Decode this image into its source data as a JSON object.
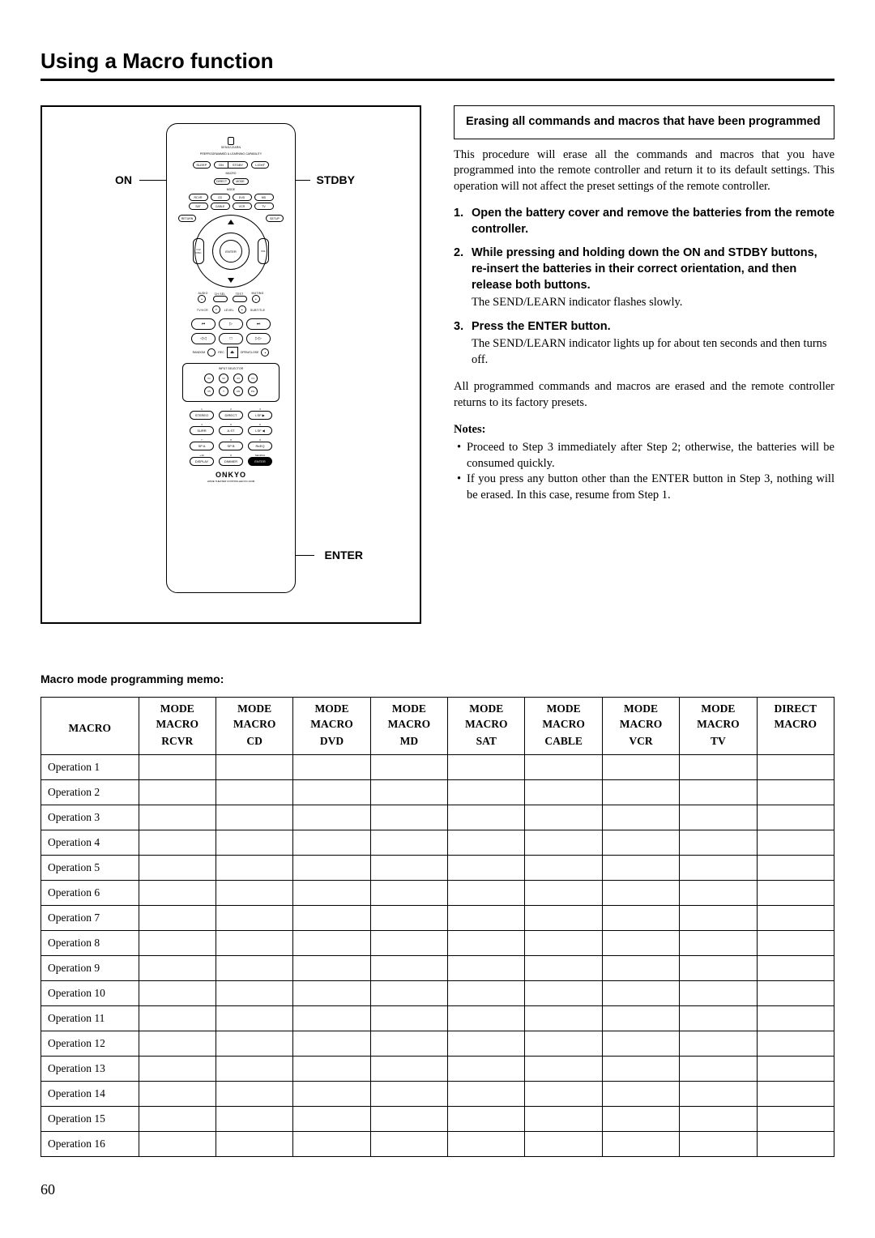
{
  "page": {
    "title": "Using a Macro function",
    "number": "60"
  },
  "remote": {
    "callouts": {
      "on": "ON",
      "stdby": "STDBY",
      "enter": "ENTER"
    },
    "sendlearn": "SEND/LEARN",
    "preprog": "PREPROGRAMMED & LEARNING CAPABILITY",
    "sleep": "SLEEP",
    "on": "ON",
    "stdby": "STDBY",
    "light": "LIGHT",
    "macro": "MACRO",
    "direct": "DIRECT",
    "mode_label": "MODE",
    "mode_btn": "MODE",
    "modes": [
      "RCVR",
      "CD",
      "DVD",
      "MD",
      "SAT",
      "CABLE",
      "VCR",
      "TV"
    ],
    "return": "RETURN",
    "setup": "SETUP",
    "ch_disc": "CH/\nDISC",
    "vol": "VOL",
    "enter": "ENTER",
    "audio": "AUDIO",
    "chsel": "CH SEL",
    "test": "TEST",
    "muting": "MUTING",
    "tvvcr": "TV/VCR",
    "angle": "ANGLE",
    "level": "LEVEL",
    "subtitle": "SUBTITLE",
    "random": "RANDOM",
    "rec": "REC",
    "openclose": "OPEN/CLOSE",
    "input_selector": "INPUT SELECTOR",
    "inputs1": [
      "V1",
      "V2",
      "V3",
      "V4"
    ],
    "inputs2": [
      "V5",
      "T",
      "CD",
      "PH"
    ],
    "num_labels": [
      "1",
      "2",
      "3",
      "4",
      "5",
      "6",
      "7",
      "8",
      "9",
      "+10",
      "0",
      "SEARCH"
    ],
    "sub_labels": [
      "STEREO",
      "DIRECT",
      "LSF ▶",
      "SURR",
      "A.ST",
      "LSF ◀",
      "SP A",
      "SP B",
      "ReEQ"
    ],
    "display": "DISPLAY",
    "dimmer": "DIMMER",
    "enter2": "ENTER",
    "brand": "ONKYO",
    "brand_sub": "HOME THEATER CONTROLLER\nRC-443M"
  },
  "erase": {
    "box_title": "Erasing all commands and macros that have been programmed",
    "intro": "This procedure will erase all the commands and macros that you have programmed into the remote controller and return it to its default settings. This operation will not affect the preset settings of the remote controller.",
    "steps": [
      {
        "n": "1.",
        "title": "Open the battery cover and remove the batteries from the remote controller.",
        "note": ""
      },
      {
        "n": "2.",
        "title": "While pressing and holding down the ON and STDBY buttons, re-insert the batteries in their correct orientation, and then release both buttons.",
        "note": "The SEND/LEARN indicator flashes slowly."
      },
      {
        "n": "3.",
        "title": "Press the ENTER button.",
        "note": "The SEND/LEARN indicator lights up for about ten seconds and then turns off."
      }
    ],
    "outro": "All programmed commands and macros are erased and the remote controller returns to its factory presets.",
    "notes_hdr": "Notes:",
    "notes": [
      "Proceed to Step 3 immediately after Step 2; otherwise, the batteries will be consumed quickly.",
      "If you press any button other than the ENTER button in Step 3, nothing will be erased. In this case, resume from Step 1."
    ]
  },
  "memo": {
    "title": "Macro mode programming memo:",
    "header": {
      "col1_r1": "MACRO",
      "mode": "MODE",
      "macro": "MACRO",
      "direct": "DIRECT",
      "cols": [
        "RCVR",
        "CD",
        "DVD",
        "MD",
        "SAT",
        "CABLE",
        "VCR",
        "TV",
        ""
      ]
    },
    "rows": [
      "Operation 1",
      "Operation 2",
      "Operation 3",
      "Operation 4",
      "Operation 5",
      "Operation 6",
      "Operation 7",
      "Operation 8",
      "Operation 9",
      "Operation 10",
      "Operation 11",
      "Operation 12",
      "Operation 13",
      "Operation 14",
      "Operation 15",
      "Operation 16"
    ]
  }
}
